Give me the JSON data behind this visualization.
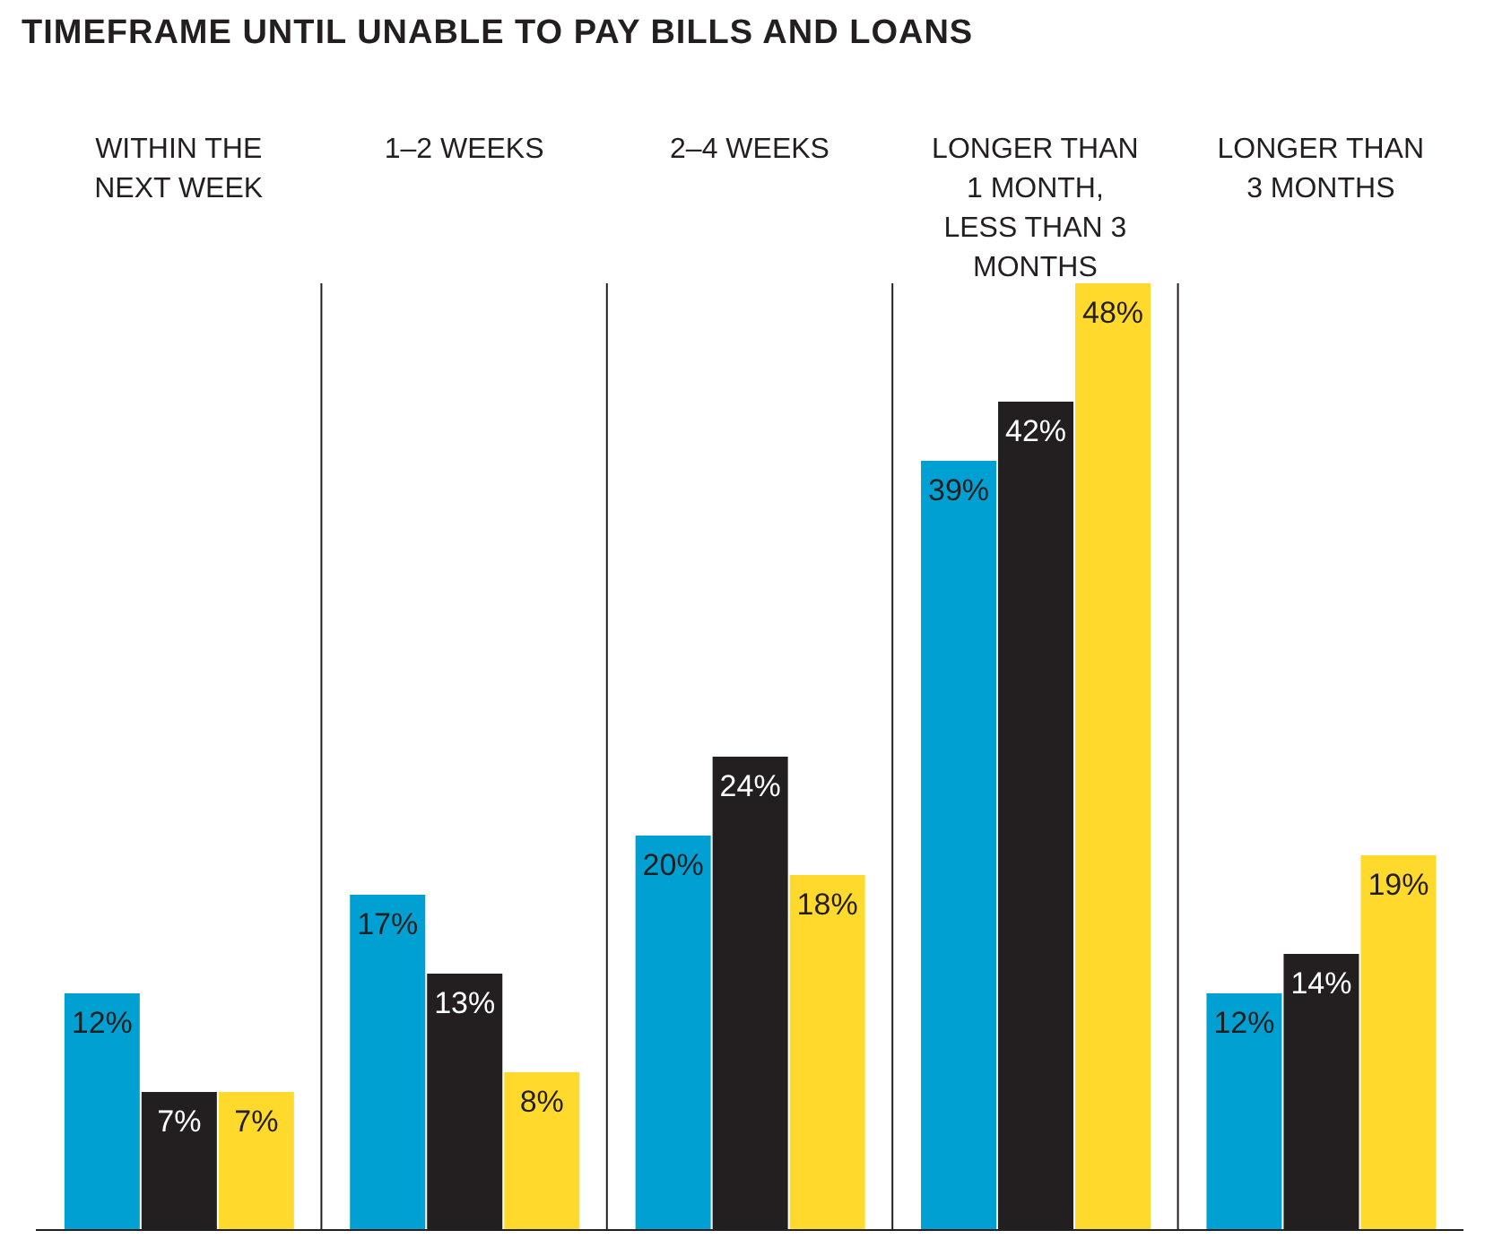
{
  "chart_data": {
    "type": "bar",
    "title": "TIMEFRAME UNTIL UNABLE TO PAY BILLS AND LOANS",
    "categories": [
      "WITHIN THE NEXT WEEK",
      "1–2 WEEKS",
      "2–4 WEEKS",
      "LONGER THAN 1 MONTH, LESS THAN 3 MONTHS",
      "LONGER THAN 3 MONTHS"
    ],
    "series": [
      {
        "color": "#00a0d2",
        "values": [
          12,
          17,
          20,
          39,
          12
        ],
        "value_labels": [
          "12%",
          "17%",
          "20%",
          "39%",
          "12%"
        ]
      },
      {
        "color": "#231f20",
        "values": [
          7,
          13,
          24,
          42,
          14
        ],
        "value_labels": [
          "7%",
          "13%",
          "24%",
          "42%",
          "14%"
        ]
      },
      {
        "color": "#ffd92b",
        "values": [
          7,
          8,
          18,
          48,
          19
        ],
        "value_labels": [
          "7%",
          "8%",
          "18%",
          "48%",
          "19%"
        ]
      }
    ],
    "grid": "x",
    "tick_labels": "x"
  }
}
